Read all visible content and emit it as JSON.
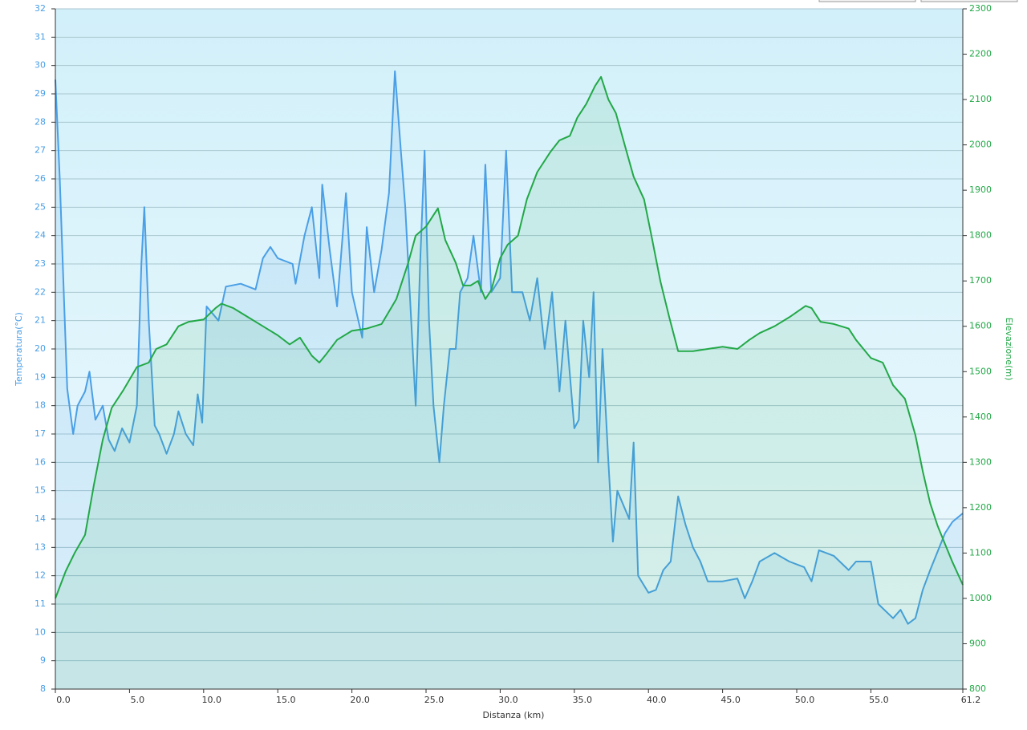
{
  "chart_data": {
    "type": "line",
    "xlabel": "Distanza  (km)",
    "ylabel": "Temperatura(°C)",
    "y2label": "Elevazione(m)",
    "xlim": [
      0,
      61.2
    ],
    "ylim": [
      8,
      32
    ],
    "y2lim": [
      800,
      2300
    ],
    "xticks": [
      {
        "value": 0,
        "label": "0.0"
      },
      {
        "value": 5,
        "label": "5.0"
      },
      {
        "value": 10,
        "label": "10.0"
      },
      {
        "value": 15,
        "label": "15.0"
      },
      {
        "value": 20,
        "label": "20.0"
      },
      {
        "value": 25,
        "label": "25.0"
      },
      {
        "value": 30,
        "label": "30.0"
      },
      {
        "value": 35,
        "label": "35.0"
      },
      {
        "value": 40,
        "label": "40.0"
      },
      {
        "value": 45,
        "label": "45.0"
      },
      {
        "value": 50,
        "label": "50.0"
      },
      {
        "value": 55,
        "label": "55.0"
      },
      61.2
    ],
    "yticks": [
      8,
      9,
      10,
      11,
      12,
      13,
      14,
      15,
      16,
      17,
      18,
      19,
      20,
      21,
      22,
      23,
      24,
      25,
      26,
      27,
      28,
      29,
      30,
      31,
      32
    ],
    "y2ticks": [
      800,
      900,
      1000,
      1100,
      1200,
      1300,
      1400,
      1500,
      1600,
      1700,
      1800,
      1900,
      2000,
      2100,
      2200,
      2300
    ],
    "grid": true,
    "series": [
      {
        "name": "Temperatura",
        "color": "#4a9fe6",
        "axis": "y",
        "x": [
          0,
          0.3,
          0.6,
          0.8,
          1.2,
          1.5,
          2,
          2.3,
          2.7,
          3.2,
          3.6,
          4,
          4.5,
          5,
          5.5,
          5.8,
          6,
          6.3,
          6.7,
          7,
          7.5,
          8,
          8.3,
          8.8,
          9.3,
          9.6,
          9.9,
          10.2,
          11,
          11.5,
          12.5,
          13.5,
          14,
          14.5,
          15,
          16,
          16.2,
          16.8,
          17.3,
          17.8,
          18,
          18.5,
          19,
          19.6,
          20,
          20.7,
          21,
          21.5,
          22,
          22.5,
          22.9,
          23.3,
          23.6,
          24,
          24.3,
          24.6,
          24.9,
          25.2,
          25.5,
          25.9,
          26.2,
          26.6,
          27,
          27.3,
          27.8,
          28.2,
          28.7,
          29,
          29.4,
          30,
          30.4,
          30.8,
          31.5,
          32,
          32.5,
          33,
          33.5,
          34,
          34.4,
          35,
          35.3,
          35.6,
          36,
          36.3,
          36.6,
          36.9,
          37.3,
          37.6,
          37.9,
          38.3,
          38.7,
          39,
          39.3,
          40,
          40.5,
          41,
          41.5,
          42,
          42.5,
          43,
          43.5,
          44,
          45,
          46,
          46.5,
          47,
          47.5,
          48.5,
          49.5,
          50.5,
          51,
          51.5,
          52,
          52.5,
          53.5,
          54,
          55,
          55.5,
          56.5,
          57,
          57.5,
          58,
          58.5,
          59,
          60,
          60.5,
          61.2
        ],
        "values": [
          29.5,
          26,
          21.5,
          18.6,
          17,
          18,
          18.5,
          19.2,
          17.5,
          18,
          16.8,
          16.4,
          17.2,
          16.7,
          18,
          23,
          25,
          21,
          17.3,
          17,
          16.3,
          17,
          17.8,
          17,
          16.6,
          18.4,
          17.4,
          21.5,
          21,
          22.2,
          22.3,
          22.1,
          23.2,
          23.6,
          23.2,
          23,
          22.3,
          24,
          25,
          22.5,
          25.8,
          23.5,
          21.5,
          25.5,
          22,
          20.4,
          24.3,
          22,
          23.5,
          25.5,
          29.8,
          27,
          25,
          21,
          18,
          23,
          27,
          21,
          18,
          16,
          18,
          20,
          20,
          22,
          22.5,
          24,
          22,
          26.5,
          22,
          22.5,
          27,
          22,
          22,
          21,
          22.5,
          20,
          22,
          18.5,
          21,
          17.2,
          17.5,
          21,
          19,
          22,
          16,
          20,
          16,
          13.2,
          15,
          14.5,
          14,
          16.7,
          12,
          11.4,
          11.5,
          12.2,
          12.5,
          14.8,
          13.8,
          13,
          12.5,
          11.8,
          11.8,
          11.9,
          11.2,
          11.8,
          12.5,
          12.8,
          12.5,
          12.3,
          11.8,
          12.9,
          12.8,
          12.7,
          12.2,
          12.5,
          12.5,
          11,
          10.5,
          10.8,
          10.3,
          10.5,
          11.5,
          12.2,
          13.5,
          13.9,
          14.2
        ]
      },
      {
        "name": "Elevazione",
        "color": "#22a847",
        "axis": "y2",
        "x": [
          0,
          0.7,
          1.3,
          2,
          2.6,
          3.2,
          3.8,
          4.6,
          5.5,
          6.3,
          6.8,
          7.5,
          8.3,
          9,
          10,
          10.8,
          11.2,
          12,
          13,
          14,
          15,
          15.8,
          16.5,
          17.3,
          17.8,
          18.3,
          19,
          20,
          21,
          22,
          23,
          23.8,
          24.3,
          25,
          25.8,
          26.3,
          27,
          27.5,
          28,
          28.5,
          29,
          29.4,
          30,
          30.5,
          31.2,
          31.8,
          32.5,
          33.4,
          34,
          34.7,
          35.2,
          35.8,
          36.4,
          36.8,
          37.3,
          37.8,
          38.4,
          39,
          39.7,
          40.2,
          40.8,
          41.4,
          42,
          43,
          44,
          45,
          46,
          46.8,
          47.5,
          48.5,
          49.5,
          50.6,
          51,
          51.6,
          52.5,
          53.5,
          54,
          55,
          55.8,
          56.5,
          57.3,
          58,
          58.5,
          59,
          59.5,
          60,
          60.5,
          61.2
        ],
        "values": [
          1000,
          1060,
          1100,
          1140,
          1250,
          1350,
          1420,
          1460,
          1510,
          1520,
          1550,
          1560,
          1600,
          1610,
          1615,
          1640,
          1650,
          1640,
          1620,
          1600,
          1580,
          1560,
          1575,
          1535,
          1520,
          1540,
          1570,
          1590,
          1595,
          1605,
          1660,
          1740,
          1800,
          1820,
          1860,
          1790,
          1740,
          1690,
          1690,
          1700,
          1660,
          1680,
          1750,
          1780,
          1800,
          1880,
          1940,
          1985,
          2010,
          2020,
          2060,
          2090,
          2130,
          2150,
          2100,
          2070,
          2000,
          1930,
          1880,
          1800,
          1700,
          1620,
          1545,
          1545,
          1550,
          1555,
          1550,
          1570,
          1585,
          1600,
          1620,
          1645,
          1640,
          1610,
          1605,
          1595,
          1570,
          1530,
          1520,
          1470,
          1440,
          1360,
          1280,
          1210,
          1160,
          1120,
          1080,
          1030
        ]
      }
    ]
  }
}
